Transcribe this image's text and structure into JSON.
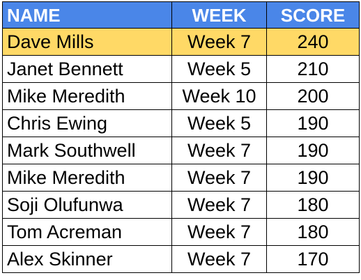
{
  "colors": {
    "header_bg": "#4a86e8",
    "header_text": "#ffffff",
    "highlight_bg": "#ffd966",
    "border": "#000000"
  },
  "headers": [
    "NAME",
    "WEEK",
    "SCORE"
  ],
  "rows": [
    {
      "name": "Dave Mills",
      "week": "Week 7",
      "score": "240",
      "highlighted": true
    },
    {
      "name": "Janet Bennett",
      "week": "Week 5",
      "score": "210",
      "highlighted": false
    },
    {
      "name": "Mike Meredith",
      "week": "Week 10",
      "score": "200",
      "highlighted": false
    },
    {
      "name": "Chris Ewing",
      "week": "Week 5",
      "score": "190",
      "highlighted": false
    },
    {
      "name": "Mark Southwell",
      "week": "Week 7",
      "score": "190",
      "highlighted": false
    },
    {
      "name": "Mike Meredith",
      "week": "Week 7",
      "score": "190",
      "highlighted": false
    },
    {
      "name": "Soji Olufunwa",
      "week": "Week 7",
      "score": "180",
      "highlighted": false
    },
    {
      "name": "Tom Acreman",
      "week": "Week 7",
      "score": "180",
      "highlighted": false
    },
    {
      "name": "Alex Skinner",
      "week": "Week 7",
      "score": "170",
      "highlighted": false
    }
  ]
}
